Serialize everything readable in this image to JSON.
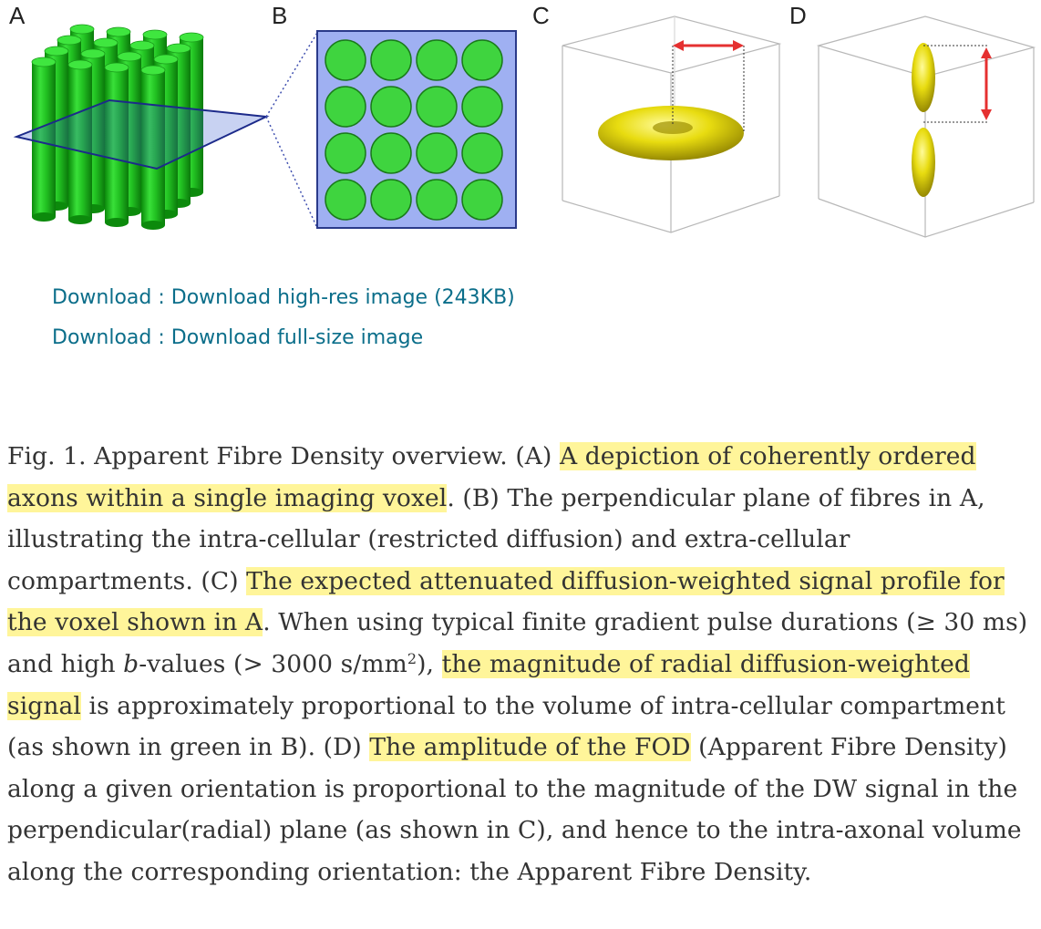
{
  "figure": {
    "panel_labels": [
      "A",
      "B",
      "C",
      "D"
    ],
    "colors": {
      "fibre": "#22cc22",
      "plane": "#3a4bb0",
      "cross_section_bg": "#9fb0f2",
      "lobe": "#e8d800",
      "arrow": "#e53030"
    }
  },
  "downloads": {
    "high_res": "Download : Download high-res image (243KB)",
    "full_size": "Download : Download full-size image"
  },
  "caption": {
    "p1": "Fig. 1. Apparent Fibre Density overview. (A) ",
    "h1": "A depiction of coherently ordered axons within a single imaging voxel",
    "p2": ". (B) The perpendicular plane of fibres in A, illustrating the intra-cellular (restricted diffusion) and extra-cellular compartments. (C) ",
    "h2": "The expected attenuated diffusion-weighted signal profile for the voxel shown in A",
    "p3": ". When using typical finite gradient pulse durations (≥ 30 ms) and high ",
    "b_italic": "b",
    "p4": "-values (> 3000 s/mm",
    "sup": "2",
    "p5": "), ",
    "h3": "the magnitude of radial diffusion-weighted signal",
    "p6": " is approximately proportional to the volume of intra-cellular compartment (as shown in green in B). (D) ",
    "h4": "The amplitude of the FOD",
    "p7": " (Apparent Fibre Density) along a given orientation is proportional to the magnitude of the DW signal in the perpendicular(radial) plane (as shown in C), and hence to the intra-axonal volume along the corresponding orientation: the Apparent Fibre Density."
  }
}
